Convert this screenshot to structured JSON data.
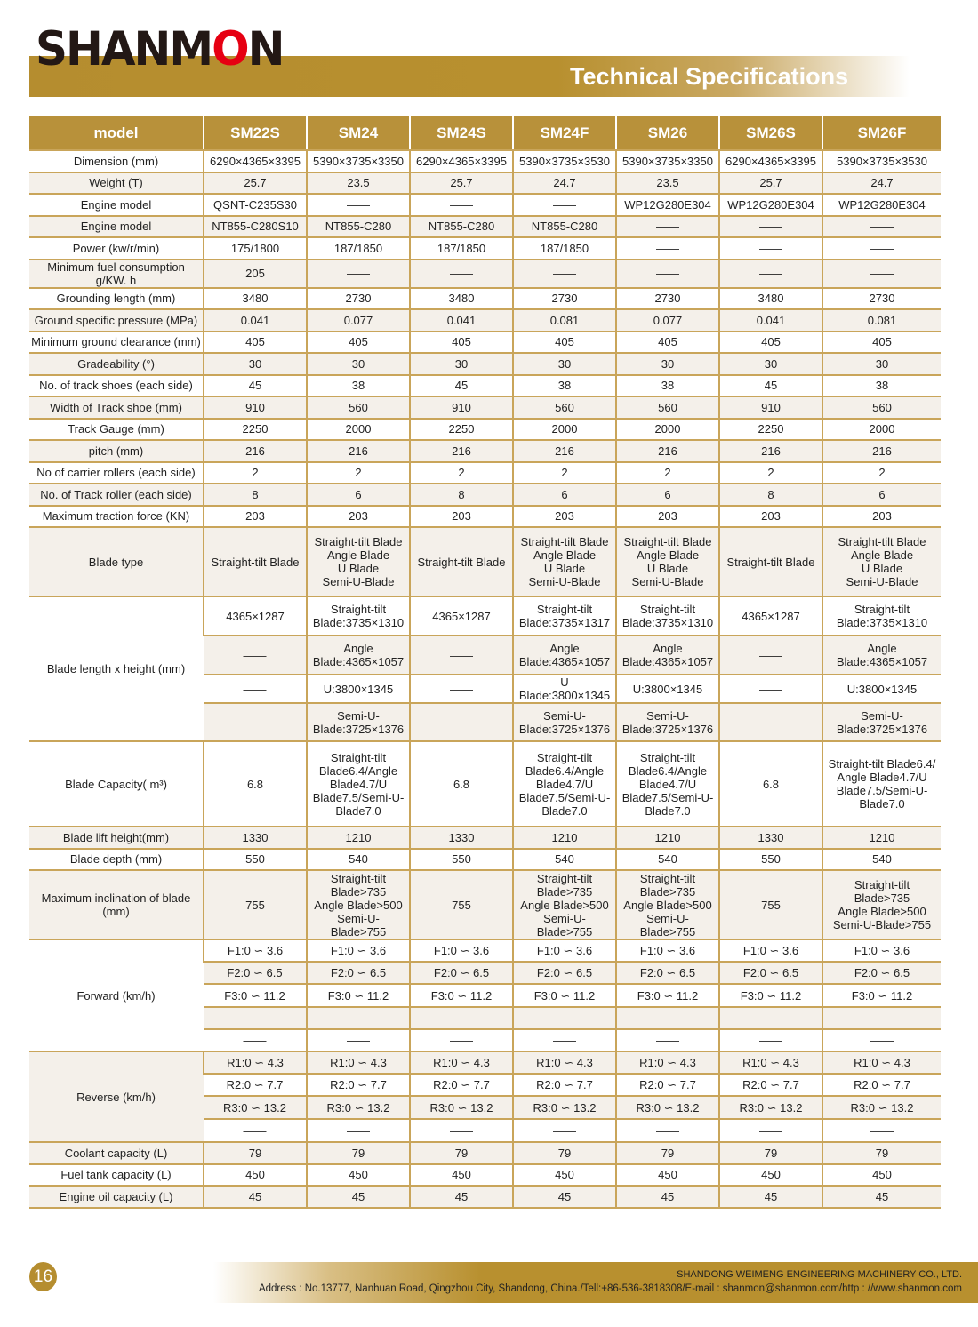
{
  "header": {
    "logo_text": "SHANMON",
    "title": "Technical Specifications"
  },
  "colors": {
    "gold": "#b8913a",
    "logo_red": "#e60012",
    "row_alt": "#f4f0ea"
  },
  "table": {
    "columns": [
      "model",
      "SM22S",
      "SM24",
      "SM24S",
      "SM24F",
      "SM26",
      "SM26S",
      "SM26F"
    ],
    "rows": [
      {
        "label": "Dimension (mm)",
        "values": [
          "6290×4365×3395",
          "5390×3735×3350",
          "6290×4365×3395",
          "5390×3735×3530",
          "5390×3735×3350",
          "6290×4365×3395",
          "5390×3735×3530"
        ]
      },
      {
        "label": "Weight (T)",
        "values": [
          "25.7",
          "23.5",
          "25.7",
          "24.7",
          "23.5",
          "25.7",
          "24.7"
        ]
      },
      {
        "label": "Engine model",
        "values": [
          "QSNT-C235S30",
          "——",
          "——",
          "——",
          "WP12G280E304",
          "WP12G280E304",
          "WP12G280E304"
        ]
      },
      {
        "label": "Engine model",
        "values": [
          "NT855-C280S10",
          "NT855-C280",
          "NT855-C280",
          "NT855-C280",
          "——",
          "——",
          "——"
        ]
      },
      {
        "label": "Power (kw/r/min)",
        "values": [
          "175/1800",
          "187/1850",
          "187/1850",
          "187/1850",
          "——",
          "——",
          "——"
        ]
      },
      {
        "label": "Minimum fuel consumption g/KW. h",
        "values": [
          "205",
          "——",
          "——",
          "——",
          "——",
          "——",
          "——"
        ]
      },
      {
        "label": "Grounding length (mm)",
        "values": [
          "3480",
          "2730",
          "3480",
          "2730",
          "2730",
          "3480",
          "2730"
        ]
      },
      {
        "label": "Ground specific pressure (MPa)",
        "values": [
          "0.041",
          "0.077",
          "0.041",
          "0.081",
          "0.077",
          "0.041",
          "0.081"
        ]
      },
      {
        "label": "Minimum ground clearance (mm)",
        "values": [
          "405",
          "405",
          "405",
          "405",
          "405",
          "405",
          "405"
        ]
      },
      {
        "label": "Gradeability (°)",
        "values": [
          "30",
          "30",
          "30",
          "30",
          "30",
          "30",
          "30"
        ]
      },
      {
        "label": "No. of track shoes (each side)",
        "values": [
          "45",
          "38",
          "45",
          "38",
          "38",
          "45",
          "38"
        ]
      },
      {
        "label": "Width of Track shoe  (mm)",
        "values": [
          "910",
          "560",
          "910",
          "560",
          "560",
          "910",
          "560"
        ]
      },
      {
        "label": "Track Gauge (mm)",
        "values": [
          "2250",
          "2000",
          "2250",
          "2000",
          "2000",
          "2250",
          "2000"
        ]
      },
      {
        "label": "pitch (mm)",
        "values": [
          "216",
          "216",
          "216",
          "216",
          "216",
          "216",
          "216"
        ]
      },
      {
        "label": "No of carrier rollers (each side)",
        "values": [
          "2",
          "2",
          "2",
          "2",
          "2",
          "2",
          "2"
        ]
      },
      {
        "label": "No. of Track roller (each side)",
        "values": [
          "8",
          "6",
          "8",
          "6",
          "6",
          "8",
          "6"
        ]
      },
      {
        "label": "Maximum traction force (KN)",
        "values": [
          "203",
          "203",
          "203",
          "203",
          "203",
          "203",
          "203"
        ]
      },
      {
        "label": "Blade type",
        "values": [
          "Straight-tilt Blade",
          "Straight-tilt Blade\nAngle Blade\nU Blade\nSemi-U-Blade",
          "Straight-tilt Blade",
          "Straight-tilt Blade\nAngle Blade\nU Blade\nSemi-U-Blade",
          "Straight-tilt Blade\nAngle Blade\nU Blade\nSemi-U-Blade",
          "Straight-tilt Blade",
          "Straight-tilt Blade\nAngle Blade\nU Blade\nSemi-U-Blade"
        ]
      },
      {
        "label": "Blade length x height (mm)",
        "sub": [
          [
            "4365×1287",
            "Straight-tilt\nBlade:3735×1310",
            "4365×1287",
            "Straight-tilt\nBlade:3735×1317",
            "Straight-tilt\nBlade:3735×1310",
            "4365×1287",
            "Straight-tilt\nBlade:3735×1310"
          ],
          [
            "——",
            "Angle\nBlade:4365×1057",
            "——",
            "Angle\nBlade:4365×1057",
            "Angle\nBlade:4365×1057",
            "——",
            "Angle Blade:4365×1057"
          ],
          [
            "——",
            "U:3800×1345",
            "——",
            "U Blade:3800×1345",
            "U:3800×1345",
            "——",
            "U:3800×1345"
          ],
          [
            "——",
            "Semi-U-\nBlade:3725×1376",
            "——",
            "Semi-U-\nBlade:3725×1376",
            "Semi-U-\nBlade:3725×1376",
            "——",
            "Semi-U-\nBlade:3725×1376"
          ]
        ]
      },
      {
        "label": "Blade Capacity( m³)",
        "values": [
          "6.8",
          "Straight-tilt\nBlade6.4/Angle\nBlade4.7/U\nBlade7.5/Semi-U-\nBlade7.0",
          "6.8",
          "Straight-tilt\nBlade6.4/Angle\nBlade4.7/U\nBlade7.5/Semi-U-\nBlade7.0",
          "Straight-tilt\nBlade6.4/Angle\nBlade4.7/U\nBlade7.5/Semi-U-\nBlade7.0",
          "6.8",
          "Straight-tilt Blade6.4/\nAngle Blade4.7/U\nBlade7.5/Semi-U-\nBlade7.0"
        ]
      },
      {
        "label": "Blade lift height(mm)",
        "values": [
          "1330",
          "1210",
          "1330",
          "1210",
          "1210",
          "1330",
          "1210"
        ]
      },
      {
        "label": "Blade depth (mm)",
        "values": [
          "550",
          "540",
          "550",
          "540",
          "540",
          "550",
          "540"
        ]
      },
      {
        "label": "Maximum inclination of blade (mm)",
        "values": [
          "755",
          "Straight-tilt\nBlade>735\nAngle Blade>500\nSemi-U-Blade>755",
          "755",
          "Straight-tilt\nBlade>735\nAngle Blade>500\nSemi-U-Blade>755",
          "Straight-tilt\nBlade>735\nAngle Blade>500\nSemi-U-Blade>755",
          "755",
          "Straight-tilt Blade>735\nAngle Blade>500\nSemi-U-Blade>755"
        ]
      },
      {
        "label": "Forward (km/h)",
        "sub": [
          [
            "F1:0 ∽ 3.6",
            "F1:0 ∽ 3.6",
            "F1:0 ∽ 3.6",
            "F1:0 ∽ 3.6",
            "F1:0 ∽ 3.6",
            "F1:0 ∽ 3.6",
            "F1:0 ∽ 3.6"
          ],
          [
            "F2:0 ∽ 6.5",
            "F2:0 ∽ 6.5",
            "F2:0 ∽ 6.5",
            "F2:0 ∽ 6.5",
            "F2:0 ∽ 6.5",
            "F2:0 ∽ 6.5",
            "F2:0 ∽ 6.5"
          ],
          [
            "F3:0 ∽ 11.2",
            "F3:0 ∽ 11.2",
            "F3:0 ∽ 11.2",
            "F3:0 ∽ 11.2",
            "F3:0 ∽ 11.2",
            "F3:0 ∽ 11.2",
            "F3:0 ∽ 11.2"
          ],
          [
            "——",
            "——",
            "——",
            "——",
            "——",
            "——",
            "——"
          ],
          [
            "——",
            "——",
            "——",
            "——",
            "——",
            "——",
            "——"
          ]
        ]
      },
      {
        "label": "Reverse (km/h)",
        "sub": [
          [
            "R1:0 ∽ 4.3",
            "R1:0 ∽ 4.3",
            "R1:0 ∽ 4.3",
            "R1:0 ∽ 4.3",
            "R1:0 ∽ 4.3",
            "R1:0 ∽ 4.3",
            "R1:0 ∽ 4.3"
          ],
          [
            "R2:0 ∽ 7.7",
            "R2:0 ∽ 7.7",
            "R2:0 ∽ 7.7",
            "R2:0 ∽ 7.7",
            "R2:0 ∽ 7.7",
            "R2:0 ∽ 7.7",
            "R2:0 ∽ 7.7"
          ],
          [
            "R3:0 ∽ 13.2",
            "R3:0 ∽ 13.2",
            "R3:0 ∽ 13.2",
            "R3:0 ∽ 13.2",
            "R3:0 ∽ 13.2",
            "R3:0 ∽ 13.2",
            "R3:0 ∽ 13.2"
          ],
          [
            "——",
            "——",
            "——",
            "——",
            "——",
            "——",
            "——"
          ]
        ]
      },
      {
        "label": "Coolant capacity (L)",
        "values": [
          "79",
          "79",
          "79",
          "79",
          "79",
          "79",
          "79"
        ]
      },
      {
        "label": "Fuel tank capacity (L)",
        "values": [
          "450",
          "450",
          "450",
          "450",
          "450",
          "450",
          "450"
        ]
      },
      {
        "label": "Engine oil capacity (L)",
        "values": [
          "45",
          "45",
          "45",
          "45",
          "45",
          "45",
          "45"
        ]
      }
    ]
  },
  "footer": {
    "page_number": "16",
    "company": "SHANDONG WEIMENG ENGINEERING MACHINERY CO., LTD.",
    "address": "Address : No.13777, Nanhuan Road, Qingzhou City, Shandong, China./Tell:+86-536-3818308/E-mail : shanmon@shanmon.com/http : //www.shanmon.com"
  }
}
